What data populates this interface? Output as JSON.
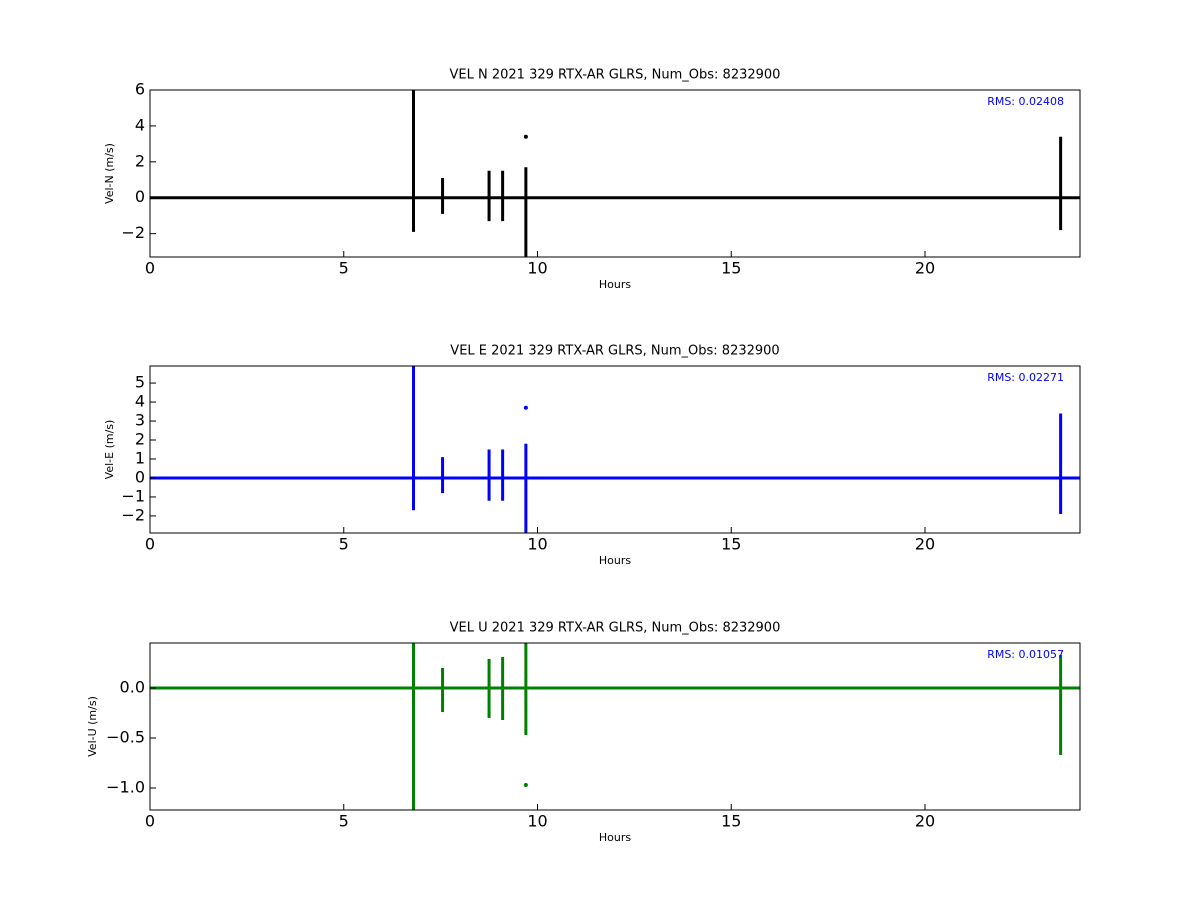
{
  "chart_data": [
    {
      "type": "line",
      "title": "VEL N 2021 329 RTX-AR  GLRS, Num_Obs: 8232900",
      "xlabel": "Hours",
      "ylabel": "Vel-N (m/s)",
      "annotation": "RMS:  0.02408",
      "color": "#000000",
      "xlim": [
        0,
        24
      ],
      "ylim": [
        -3.3,
        6
      ],
      "xticks": [
        0,
        5,
        10,
        15,
        20
      ],
      "yticks": [
        {
          "value": -2,
          "label": "−2"
        },
        0,
        2,
        4,
        6
      ],
      "x": [
        0,
        6.8,
        6.8,
        6.8,
        6.8,
        7.55,
        7.55,
        7.55,
        7.55,
        8.75,
        8.75,
        8.75,
        8.75,
        9.1,
        9.1,
        9.1,
        9.1,
        9.7,
        9.7,
        9.7,
        9.7,
        23.5,
        23.5,
        23.5,
        23.5,
        24
      ],
      "values": [
        0,
        0,
        6,
        -1.9,
        0,
        0,
        1.1,
        -0.9,
        0,
        0,
        1.5,
        -1.3,
        0,
        0,
        1.5,
        -1.3,
        0,
        0,
        1.7,
        -3.3,
        0,
        0,
        3.4,
        -1.8,
        0,
        0
      ],
      "outliers": {
        "x": [
          9.7
        ],
        "values": [
          3.4
        ]
      }
    },
    {
      "type": "line",
      "title": "VEL E 2021 329 RTX-AR  GLRS, Num_Obs: 8232900",
      "xlabel": "Hours",
      "ylabel": "Vel-E (m/s)",
      "annotation": "RMS:  0.02271",
      "color": "#0000ff",
      "xlim": [
        0,
        24
      ],
      "ylim": [
        -2.9,
        5.9
      ],
      "xticks": [
        0,
        5,
        10,
        15,
        20
      ],
      "yticks": [
        {
          "value": -2,
          "label": "−2"
        },
        {
          "value": -1,
          "label": "−1"
        },
        0,
        1,
        2,
        3,
        4,
        5
      ],
      "x": [
        0,
        6.8,
        6.8,
        6.8,
        6.8,
        7.55,
        7.55,
        7.55,
        7.55,
        8.75,
        8.75,
        8.75,
        8.75,
        9.1,
        9.1,
        9.1,
        9.1,
        9.7,
        9.7,
        9.7,
        9.7,
        23.5,
        23.5,
        23.5,
        23.5,
        24
      ],
      "values": [
        0,
        0,
        5.9,
        -1.7,
        0,
        0,
        1.1,
        -0.8,
        0,
        0,
        1.5,
        -1.2,
        0,
        0,
        1.5,
        -1.2,
        0,
        0,
        1.8,
        -2.9,
        0,
        0,
        3.4,
        -1.9,
        0,
        0
      ],
      "outliers": {
        "x": [
          9.7
        ],
        "values": [
          3.7
        ]
      }
    },
    {
      "type": "line",
      "title": "VEL U 2021 329 RTX-AR  GLRS, Num_Obs: 8232900",
      "xlabel": "Hours",
      "ylabel": "Vel-U (m/s)",
      "annotation": "RMS:  0.01057",
      "color": "#008000",
      "xlim": [
        0,
        24
      ],
      "ylim": [
        -1.22,
        0.45
      ],
      "xticks": [
        0,
        5,
        10,
        15,
        20
      ],
      "yticks": [
        {
          "value": -1,
          "label": "−1.0"
        },
        {
          "value": -0.5,
          "label": "−0.5"
        },
        {
          "value": 0,
          "label": "0.0"
        }
      ],
      "x": [
        0,
        6.8,
        6.8,
        6.8,
        6.8,
        7.55,
        7.55,
        7.55,
        7.55,
        8.75,
        8.75,
        8.75,
        8.75,
        9.1,
        9.1,
        9.1,
        9.1,
        9.7,
        9.7,
        9.7,
        9.7,
        23.5,
        23.5,
        23.5,
        23.5,
        24
      ],
      "values": [
        0,
        0,
        0.45,
        -1.22,
        0,
        0,
        0.2,
        -0.24,
        0,
        0,
        0.29,
        -0.3,
        0,
        0,
        0.31,
        -0.32,
        0,
        0,
        0.45,
        -0.47,
        0,
        0,
        0.33,
        -0.67,
        0,
        0
      ],
      "outliers": {
        "x": [
          9.7
        ],
        "values": [
          -0.97
        ]
      }
    }
  ]
}
